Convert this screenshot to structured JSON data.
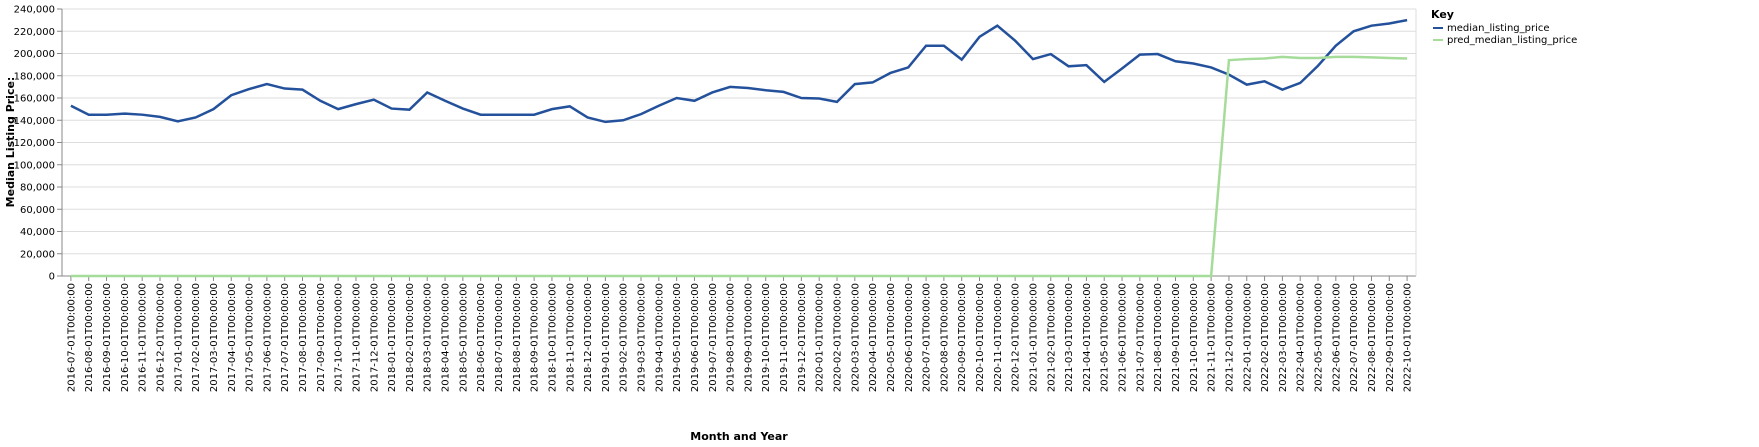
{
  "chart_data": {
    "type": "line",
    "x_label": "Month and Year",
    "y_label": "Median Listing Price:",
    "legend_title": "Key",
    "legend_position": "right",
    "grid": true,
    "categories": [
      "2016-07-01T00:00:00",
      "2016-08-01T00:00:00",
      "2016-09-01T00:00:00",
      "2016-10-01T00:00:00",
      "2016-11-01T00:00:00",
      "2016-12-01T00:00:00",
      "2017-01-01T00:00:00",
      "2017-02-01T00:00:00",
      "2017-03-01T00:00:00",
      "2017-04-01T00:00:00",
      "2017-05-01T00:00:00",
      "2017-06-01T00:00:00",
      "2017-07-01T00:00:00",
      "2017-08-01T00:00:00",
      "2017-09-01T00:00:00",
      "2017-10-01T00:00:00",
      "2017-11-01T00:00:00",
      "2017-12-01T00:00:00",
      "2018-01-01T00:00:00",
      "2018-02-01T00:00:00",
      "2018-03-01T00:00:00",
      "2018-04-01T00:00:00",
      "2018-05-01T00:00:00",
      "2018-06-01T00:00:00",
      "2018-07-01T00:00:00",
      "2018-08-01T00:00:00",
      "2018-09-01T00:00:00",
      "2018-10-01T00:00:00",
      "2018-11-01T00:00:00",
      "2018-12-01T00:00:00",
      "2019-01-01T00:00:00",
      "2019-02-01T00:00:00",
      "2019-03-01T00:00:00",
      "2019-04-01T00:00:00",
      "2019-05-01T00:00:00",
      "2019-06-01T00:00:00",
      "2019-07-01T00:00:00",
      "2019-08-01T00:00:00",
      "2019-09-01T00:00:00",
      "2019-10-01T00:00:00",
      "2019-11-01T00:00:00",
      "2019-12-01T00:00:00",
      "2020-01-01T00:00:00",
      "2020-02-01T00:00:00",
      "2020-03-01T00:00:00",
      "2020-04-01T00:00:00",
      "2020-05-01T00:00:00",
      "2020-06-01T00:00:00",
      "2020-07-01T00:00:00",
      "2020-08-01T00:00:00",
      "2020-09-01T00:00:00",
      "2020-10-01T00:00:00",
      "2020-11-01T00:00:00",
      "2020-12-01T00:00:00",
      "2021-01-01T00:00:00",
      "2021-02-01T00:00:00",
      "2021-03-01T00:00:00",
      "2021-04-01T00:00:00",
      "2021-05-01T00:00:00",
      "2021-06-01T00:00:00",
      "2021-07-01T00:00:00",
      "2021-08-01T00:00:00",
      "2021-09-01T00:00:00",
      "2021-10-01T00:00:00",
      "2021-11-01T00:00:00",
      "2021-12-01T00:00:00",
      "2022-01-01T00:00:00",
      "2022-02-01T00:00:00",
      "2022-03-01T00:00:00",
      "2022-04-01T00:00:00",
      "2022-05-01T00:00:00",
      "2022-06-01T00:00:00",
      "2022-07-01T00:00:00",
      "2022-08-01T00:00:00",
      "2022-09-01T00:00:00",
      "2022-10-01T00:00:00"
    ],
    "series": [
      {
        "name": "median_listing_price",
        "color": "#24519b",
        "values": [
          153000,
          145000,
          145000,
          146000,
          145000,
          143000,
          139000,
          142500,
          150000,
          162500,
          168000,
          172500,
          168500,
          167500,
          157500,
          150000,
          154500,
          158500,
          150500,
          149500,
          165000,
          157500,
          150500,
          145000,
          145000,
          145000,
          145000,
          150000,
          152500,
          142500,
          138500,
          140000,
          145500,
          153000,
          160000,
          157500,
          165000,
          170000,
          169000,
          167000,
          165500,
          160000,
          159500,
          156500,
          172500,
          174000,
          182500,
          187500,
          207000,
          207000,
          194500,
          215000,
          225000,
          211500,
          195000,
          199500,
          188500,
          189500,
          174500,
          186500,
          199000,
          199500,
          193000,
          191000,
          187500,
          181000,
          172000,
          175000,
          167500,
          173500,
          189000,
          207000,
          220000,
          225000,
          227000,
          230000
        ]
      },
      {
        "name": "pred_median_listing_price",
        "color": "#a6dc9a",
        "values": [
          0,
          0,
          0,
          0,
          0,
          0,
          0,
          0,
          0,
          0,
          0,
          0,
          0,
          0,
          0,
          0,
          0,
          0,
          0,
          0,
          0,
          0,
          0,
          0,
          0,
          0,
          0,
          0,
          0,
          0,
          0,
          0,
          0,
          0,
          0,
          0,
          0,
          0,
          0,
          0,
          0,
          0,
          0,
          0,
          0,
          0,
          0,
          0,
          0,
          0,
          0,
          0,
          0,
          0,
          0,
          0,
          0,
          0,
          0,
          0,
          0,
          0,
          0,
          0,
          0,
          194000,
          195000,
          195500,
          197000,
          196000,
          196000,
          197000,
          197000,
          196500,
          196000,
          195500
        ]
      }
    ],
    "ylim": [
      0,
      240000
    ],
    "yticks": [
      {
        "value": 0,
        "label": "0"
      },
      {
        "value": 20000,
        "label": "20,000"
      },
      {
        "value": 40000,
        "label": "40,000"
      },
      {
        "value": 60000,
        "label": "60,000"
      },
      {
        "value": 80000,
        "label": "80,000"
      },
      {
        "value": 100000,
        "label": "100,000"
      },
      {
        "value": 120000,
        "label": "120,000"
      },
      {
        "value": 140000,
        "label": "140,000"
      },
      {
        "value": 160000,
        "label": "160,000"
      },
      {
        "value": 180000,
        "label": "180,000"
      },
      {
        "value": 200000,
        "label": "200,000"
      },
      {
        "value": 220000,
        "label": "220,000"
      },
      {
        "value": 240000,
        "label": "240,000"
      }
    ]
  }
}
